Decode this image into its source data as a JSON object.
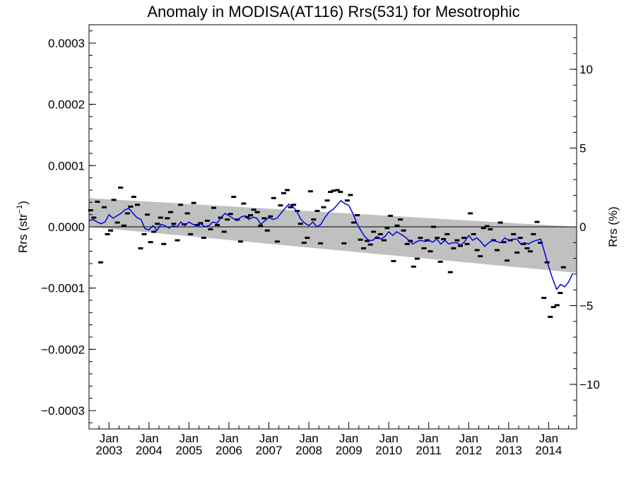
{
  "chart_data": {
    "type": "scatter",
    "title": "Anomaly in MODISA(AT116) Rrs(531) for Mesotrophic",
    "ylabel_left": "Rrs (str",
    "ylabel_left_sup": "−1",
    "ylabel_left_end": ")",
    "ylabel_right": "Rrs (%)",
    "ylim_left": [
      -0.00033,
      0.00033
    ],
    "ylim_right": [
      -12.83,
      12.83
    ],
    "xlim": [
      2002.5,
      2014.7
    ],
    "left_ticks": [
      {
        "value": 0.0003,
        "label": "0.0003"
      },
      {
        "value": 0.0002,
        "label": "0.0002"
      },
      {
        "value": 0.0001,
        "label": "0.0001"
      },
      {
        "value": 0.0,
        "label": "0.0000"
      },
      {
        "value": -0.0001,
        "label": "−0.0001"
      },
      {
        "value": -0.0002,
        "label": "−0.0002"
      },
      {
        "value": -0.0003,
        "label": "−0.0003"
      }
    ],
    "right_ticks": [
      {
        "value": 10,
        "label": "10"
      },
      {
        "value": 5,
        "label": "5"
      },
      {
        "value": 0,
        "label": "0"
      },
      {
        "value": -5,
        "label": "−5"
      },
      {
        "value": -10,
        "label": "−10"
      }
    ],
    "x_ticks": [
      {
        "value": 2003,
        "month": "Jan",
        "year": "2003"
      },
      {
        "value": 2004,
        "month": "Jan",
        "year": "2004"
      },
      {
        "value": 2005,
        "month": "Jan",
        "year": "2005"
      },
      {
        "value": 2006,
        "month": "Jan",
        "year": "2006"
      },
      {
        "value": 2007,
        "month": "Jan",
        "year": "2007"
      },
      {
        "value": 2008,
        "month": "Jan",
        "year": "2008"
      },
      {
        "value": 2009,
        "month": "Jan",
        "year": "2009"
      },
      {
        "value": 2010,
        "month": "Jan",
        "year": "2010"
      },
      {
        "value": 2011,
        "month": "Jan",
        "year": "2011"
      },
      {
        "value": 2012,
        "month": "Jan",
        "year": "2012"
      },
      {
        "value": 2013,
        "month": "Jan",
        "year": "2013"
      },
      {
        "value": 2014,
        "month": "Jan",
        "year": "2014"
      }
    ],
    "trend_band": {
      "x": [
        2002.5,
        2014.7
      ],
      "upper": [
        4.7e-05,
        0.0
      ],
      "lower": [
        0.0,
        -7.5e-05
      ]
    },
    "zero_line": 0,
    "colors": {
      "band": "#c0c0c0",
      "line": "#0000dd",
      "points": "#000000",
      "zero": "#000000"
    },
    "points": [
      [
        2002.54,
        2.7e-05
      ],
      [
        2002.62,
        1.5e-05
      ],
      [
        2002.71,
        4.1e-05
      ],
      [
        2002.79,
        -5.8e-05
      ],
      [
        2002.88,
        3.2e-05
      ],
      [
        2002.96,
        -1.2e-05
      ],
      [
        2003.04,
        -6e-06
      ],
      [
        2003.12,
        4.4e-05
      ],
      [
        2003.21,
        7e-06
      ],
      [
        2003.29,
        6.4e-05
      ],
      [
        2003.37,
        2e-06
      ],
      [
        2003.46,
        2.2e-05
      ],
      [
        2003.54,
        3.3e-05
      ],
      [
        2003.62,
        4.9e-05
      ],
      [
        2003.71,
        3.6e-05
      ],
      [
        2003.79,
        -3.5e-05
      ],
      [
        2003.88,
        -1.2e-05
      ],
      [
        2003.96,
        2e-05
      ],
      [
        2004.04,
        -2.5e-05
      ],
      [
        2004.12,
        -8e-06
      ],
      [
        2004.21,
        5e-06
      ],
      [
        2004.29,
        1.5e-05
      ],
      [
        2004.37,
        -2.8e-05
      ],
      [
        2004.46,
        1.4e-05
      ],
      [
        2004.54,
        2.4e-05
      ],
      [
        2004.62,
        5e-06
      ],
      [
        2004.71,
        -2.2e-05
      ],
      [
        2004.79,
        3.6e-05
      ],
      [
        2004.88,
        4e-06
      ],
      [
        2004.96,
        2.2e-05
      ],
      [
        2005.04,
        -1.2e-05
      ],
      [
        2005.12,
        3.9e-05
      ],
      [
        2005.21,
        3e-06
      ],
      [
        2005.29,
        6e-06
      ],
      [
        2005.37,
        -1.8e-05
      ],
      [
        2005.46,
        1e-05
      ],
      [
        2005.54,
        -4e-06
      ],
      [
        2005.62,
        3.1e-05
      ],
      [
        2005.71,
        3e-06
      ],
      [
        2005.79,
        1.5e-05
      ],
      [
        2005.88,
        -8e-06
      ],
      [
        2005.96,
        1.2e-05
      ],
      [
        2006.04,
        2.1e-05
      ],
      [
        2006.12,
        4.9e-05
      ],
      [
        2006.21,
        1.2e-05
      ],
      [
        2006.29,
        -2.4e-05
      ],
      [
        2006.37,
        3.8e-05
      ],
      [
        2006.46,
        1.6e-05
      ],
      [
        2006.54,
        1.9e-05
      ],
      [
        2006.62,
        2.8e-05
      ],
      [
        2006.71,
        2.4e-05
      ],
      [
        2006.79,
        2e-06
      ],
      [
        2006.88,
        1.4e-05
      ],
      [
        2006.96,
        -6e-06
      ],
      [
        2007.04,
        1.7e-05
      ],
      [
        2007.12,
        4.7e-05
      ],
      [
        2007.21,
        -2.4e-05
      ],
      [
        2007.29,
        3.5e-05
      ],
      [
        2007.37,
        5.5e-05
      ],
      [
        2007.46,
        6e-05
      ],
      [
        2007.54,
        3.2e-05
      ],
      [
        2007.62,
        3.6e-05
      ],
      [
        2007.71,
        2.6e-05
      ],
      [
        2007.79,
        5e-06
      ],
      [
        2007.88,
        -2.6e-05
      ],
      [
        2007.96,
        -1.8e-05
      ],
      [
        2008.04,
        5.8e-05
      ],
      [
        2008.12,
        1.2e-05
      ],
      [
        2008.21,
        2.6e-05
      ],
      [
        2008.29,
        -2.7e-05
      ],
      [
        2008.37,
        3.2e-05
      ],
      [
        2008.46,
        4.3e-05
      ],
      [
        2008.54,
        5.7e-05
      ],
      [
        2008.62,
        5.9e-05
      ],
      [
        2008.71,
        6e-05
      ],
      [
        2008.79,
        5.7e-05
      ],
      [
        2008.88,
        -2.7e-05
      ],
      [
        2008.96,
        4.3e-05
      ],
      [
        2009.04,
        5.2e-05
      ],
      [
        2009.12,
        7e-06
      ],
      [
        2009.21,
        1.9e-05
      ],
      [
        2009.29,
        -2.1e-05
      ],
      [
        2009.37,
        -3.5e-05
      ],
      [
        2009.46,
        -2.3e-05
      ],
      [
        2009.54,
        -2.9e-05
      ],
      [
        2009.62,
        -8e-06
      ],
      [
        2009.71,
        -1.8e-05
      ],
      [
        2009.79,
        -1.2e-05
      ],
      [
        2009.88,
        -2.2e-05
      ],
      [
        2009.96,
        -2e-06
      ],
      [
        2010.04,
        1.8e-05
      ],
      [
        2010.12,
        -5.6e-05
      ],
      [
        2010.21,
        2e-06
      ],
      [
        2010.29,
        1.2e-05
      ],
      [
        2010.37,
        -6e-06
      ],
      [
        2010.46,
        -2.8e-05
      ],
      [
        2010.54,
        -2.3e-05
      ],
      [
        2010.62,
        -6.5e-05
      ],
      [
        2010.71,
        -5.2e-05
      ],
      [
        2010.79,
        -1.8e-05
      ],
      [
        2010.88,
        -3.5e-05
      ],
      [
        2010.96,
        -2.2e-05
      ],
      [
        2011.04,
        -4e-05
      ],
      [
        2011.12,
        0.0
      ],
      [
        2011.21,
        -1.8e-05
      ],
      [
        2011.29,
        -5.7e-05
      ],
      [
        2011.37,
        -2e-05
      ],
      [
        2011.46,
        -1.2e-05
      ],
      [
        2011.54,
        -7.4e-05
      ],
      [
        2011.62,
        -3.5e-05
      ],
      [
        2011.71,
        -2.2e-05
      ],
      [
        2011.79,
        -3.1e-05
      ],
      [
        2011.88,
        -1.8e-05
      ],
      [
        2011.96,
        -2.8e-05
      ],
      [
        2012.04,
        2.2e-05
      ],
      [
        2012.12,
        -1.2e-05
      ],
      [
        2012.21,
        -3.8e-05
      ],
      [
        2012.29,
        -4.8e-05
      ],
      [
        2012.37,
        -2e-06
      ],
      [
        2012.46,
        1e-06
      ],
      [
        2012.54,
        -4e-06
      ],
      [
        2012.62,
        -2.2e-05
      ],
      [
        2012.71,
        -3.8e-05
      ],
      [
        2012.79,
        7e-06
      ],
      [
        2012.88,
        -2.5e-05
      ],
      [
        2012.96,
        -5.5e-05
      ],
      [
        2013.04,
        -2.2e-05
      ],
      [
        2013.12,
        -1.2e-05
      ],
      [
        2013.21,
        -4.2e-05
      ],
      [
        2013.29,
        -1.8e-05
      ],
      [
        2013.37,
        -2.8e-05
      ],
      [
        2013.46,
        -3.5e-05
      ],
      [
        2013.54,
        -4e-05
      ],
      [
        2013.62,
        -1.2e-05
      ],
      [
        2013.71,
        8e-06
      ],
      [
        2013.79,
        -2.6e-05
      ],
      [
        2013.88,
        -0.000116
      ],
      [
        2013.96,
        -5.8e-05
      ],
      [
        2014.04,
        -0.000147
      ],
      [
        2014.12,
        -0.000131
      ],
      [
        2014.21,
        -0.000128
      ],
      [
        2014.29,
        -0.000108
      ],
      [
        2014.37,
        -6.6e-05
      ]
    ],
    "running_mean": [
      [
        2002.5,
        1e-05
      ],
      [
        2002.6,
        1.2e-05
      ],
      [
        2002.7,
        8e-06
      ],
      [
        2002.8,
        5e-06
      ],
      [
        2002.9,
        8e-06
      ],
      [
        2003.0,
        2e-05
      ],
      [
        2003.1,
        1.4e-05
      ],
      [
        2003.2,
        1.8e-05
      ],
      [
        2003.3,
        2.2e-05
      ],
      [
        2003.4,
        2.8e-05
      ],
      [
        2003.5,
        3e-05
      ],
      [
        2003.6,
        2.2e-05
      ],
      [
        2003.7,
        1.5e-05
      ],
      [
        2003.8,
        1.2e-05
      ],
      [
        2003.9,
        -3e-06
      ],
      [
        2004.0,
        -5e-06
      ],
      [
        2004.1,
        2e-06
      ],
      [
        2004.2,
        -6e-06
      ],
      [
        2004.3,
        4e-06
      ],
      [
        2004.4,
        2e-06
      ],
      [
        2004.5,
        -2e-06
      ],
      [
        2004.6,
        2e-06
      ],
      [
        2004.7,
        0.0
      ],
      [
        2004.8,
        8e-06
      ],
      [
        2004.9,
        2e-06
      ],
      [
        2005.0,
        8e-06
      ],
      [
        2005.1,
        4e-06
      ],
      [
        2005.2,
        2e-06
      ],
      [
        2005.3,
        5e-06
      ],
      [
        2005.4,
        0.0
      ],
      [
        2005.5,
        2e-06
      ],
      [
        2005.6,
        8e-06
      ],
      [
        2005.7,
        6e-06
      ],
      [
        2005.8,
        1.5e-05
      ],
      [
        2005.9,
        2.2e-05
      ],
      [
        2006.0,
        1.8e-05
      ],
      [
        2006.1,
        1.4e-05
      ],
      [
        2006.2,
        1e-05
      ],
      [
        2006.3,
        1.6e-05
      ],
      [
        2006.4,
        1.8e-05
      ],
      [
        2006.5,
        1.2e-05
      ],
      [
        2006.6,
        1.6e-05
      ],
      [
        2006.7,
        1.4e-05
      ],
      [
        2006.8,
        4e-06
      ],
      [
        2006.9,
        1e-05
      ],
      [
        2007.0,
        1.5e-05
      ],
      [
        2007.1,
        1.2e-05
      ],
      [
        2007.2,
        1.4e-05
      ],
      [
        2007.3,
        2.2e-05
      ],
      [
        2007.4,
        3e-05
      ],
      [
        2007.5,
        3.7e-05
      ],
      [
        2007.6,
        3.3e-05
      ],
      [
        2007.7,
        2.5e-05
      ],
      [
        2007.8,
        1.2e-05
      ],
      [
        2007.9,
        6e-06
      ],
      [
        2008.0,
        2e-06
      ],
      [
        2008.1,
        8e-06
      ],
      [
        2008.2,
        0.0
      ],
      [
        2008.3,
        4e-06
      ],
      [
        2008.4,
        1.5e-05
      ],
      [
        2008.5,
        2.4e-05
      ],
      [
        2008.6,
        2.8e-05
      ],
      [
        2008.7,
        3.5e-05
      ],
      [
        2008.8,
        4.3e-05
      ],
      [
        2008.9,
        3.8e-05
      ],
      [
        2009.0,
        3.5e-05
      ],
      [
        2009.1,
        2.2e-05
      ],
      [
        2009.2,
        6e-06
      ],
      [
        2009.3,
        -6e-06
      ],
      [
        2009.4,
        -1.6e-05
      ],
      [
        2009.5,
        -2.2e-05
      ],
      [
        2009.6,
        -2.2e-05
      ],
      [
        2009.7,
        -1.6e-05
      ],
      [
        2009.8,
        -2e-05
      ],
      [
        2009.9,
        -1.6e-05
      ],
      [
        2010.0,
        -8e-06
      ],
      [
        2010.1,
        -1.4e-05
      ],
      [
        2010.2,
        -8e-06
      ],
      [
        2010.3,
        -1.2e-05
      ],
      [
        2010.4,
        -1.6e-05
      ],
      [
        2010.5,
        -2.2e-05
      ],
      [
        2010.6,
        -2.8e-05
      ],
      [
        2010.7,
        -2.4e-05
      ],
      [
        2010.8,
        -2.2e-05
      ],
      [
        2010.9,
        -2.4e-05
      ],
      [
        2011.0,
        -2.2e-05
      ],
      [
        2011.1,
        -2.5e-05
      ],
      [
        2011.2,
        -2e-05
      ],
      [
        2011.3,
        -2.8e-05
      ],
      [
        2011.4,
        -2.2e-05
      ],
      [
        2011.5,
        -2.8e-05
      ],
      [
        2011.6,
        -2.6e-05
      ],
      [
        2011.7,
        -2.6e-05
      ],
      [
        2011.8,
        -3e-05
      ],
      [
        2011.9,
        -2.4e-05
      ],
      [
        2012.0,
        -1.4e-05
      ],
      [
        2012.1,
        -2.2e-05
      ],
      [
        2012.2,
        -1.8e-05
      ],
      [
        2012.3,
        -2.4e-05
      ],
      [
        2012.4,
        -3.2e-05
      ],
      [
        2012.5,
        -2.6e-05
      ],
      [
        2012.6,
        -2.2e-05
      ],
      [
        2012.7,
        -2.4e-05
      ],
      [
        2012.8,
        -2.6e-05
      ],
      [
        2012.9,
        -1.8e-05
      ],
      [
        2013.0,
        -2.2e-05
      ],
      [
        2013.1,
        -2e-05
      ],
      [
        2013.2,
        -2e-05
      ],
      [
        2013.3,
        -2.8e-05
      ],
      [
        2013.4,
        -2.6e-05
      ],
      [
        2013.5,
        -2.8e-05
      ],
      [
        2013.6,
        -2.4e-05
      ],
      [
        2013.7,
        -2.2e-05
      ],
      [
        2013.8,
        -2e-05
      ],
      [
        2013.9,
        -4.2e-05
      ],
      [
        2014.0,
        -6.5e-05
      ],
      [
        2014.1,
        -8.5e-05
      ],
      [
        2014.2,
        -0.000102
      ],
      [
        2014.3,
        -9.4e-05
      ],
      [
        2014.4,
        -9.8e-05
      ],
      [
        2014.5,
        -9e-05
      ],
      [
        2014.6,
        -7.6e-05
      ]
    ]
  }
}
